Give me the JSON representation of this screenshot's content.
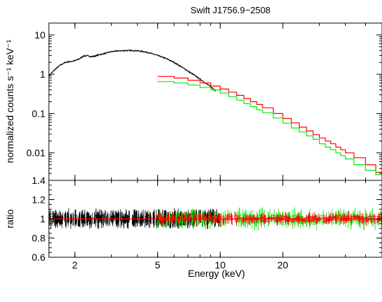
{
  "chart_data": {
    "type": "line",
    "title": "Swift J1756.9−2508",
    "xlabel": "Energy (keV)",
    "xscale": "log",
    "xlim": [
      1.5,
      60
    ],
    "x_ticks": [
      {
        "value": 2,
        "label": "2"
      },
      {
        "value": 5,
        "label": "5"
      },
      {
        "value": 10,
        "label": "10"
      },
      {
        "value": 20,
        "label": "20"
      }
    ],
    "panels": [
      {
        "ylabel": "normalized counts s⁻¹ keV⁻¹",
        "yscale": "log",
        "ylim": [
          0.002,
          20
        ],
        "y_ticks": [
          {
            "value": 10,
            "label": "10"
          },
          {
            "value": 1,
            "label": "1"
          },
          {
            "value": 0.1,
            "label": "0.1"
          },
          {
            "value": 0.01,
            "label": "0.01"
          }
        ],
        "series": [
          {
            "color": "#000000",
            "style": "line",
            "x": [
              1.5,
              1.6,
              1.7,
              1.8,
              1.9,
              2.0,
              2.1,
              2.2,
              2.3,
              2.4,
              2.5,
              2.6,
              2.8,
              3.0,
              3.2,
              3.5,
              3.8,
              4.0,
              4.3,
              4.6,
              5.0,
              5.5,
              6.0,
              6.5,
              7.0,
              7.5,
              8.0,
              8.5,
              9.0,
              9.5
            ],
            "y": [
              0.9,
              1.3,
              1.7,
              2.0,
              2.1,
              2.2,
              2.45,
              2.9,
              2.95,
              2.8,
              2.9,
              3.1,
              3.4,
              3.75,
              3.9,
              4.0,
              4.0,
              3.95,
              3.75,
              3.45,
              3.0,
              2.5,
              2.0,
              1.55,
              1.2,
              0.95,
              0.75,
              0.6,
              0.48,
              0.38
            ]
          },
          {
            "color": "#ff0000",
            "style": "step",
            "x": [
              5,
              6,
              7,
              8,
              9,
              10,
              11,
              12,
              13,
              14,
              15,
              16,
              18,
              20,
              22,
              24,
              26,
              28,
              30,
              32,
              34,
              36,
              38,
              40,
              44,
              50,
              56,
              60
            ],
            "y": [
              0.88,
              0.8,
              0.7,
              0.6,
              0.5,
              0.42,
              0.35,
              0.29,
              0.24,
              0.2,
              0.17,
              0.14,
              0.1,
              0.075,
              0.058,
              0.045,
              0.036,
              0.029,
              0.024,
              0.02,
              0.017,
              0.014,
              0.012,
              0.01,
              0.0075,
              0.005,
              0.0032,
              0.0032
            ]
          },
          {
            "color": "#00ee00",
            "style": "step",
            "x": [
              5,
              6,
              7,
              8,
              9,
              10,
              11,
              12,
              13,
              14,
              15,
              16,
              18,
              20,
              22,
              24,
              26,
              28,
              30,
              32,
              34,
              36,
              38,
              40,
              44,
              50,
              56,
              60
            ],
            "y": [
              0.65,
              0.6,
              0.53,
              0.46,
              0.4,
              0.33,
              0.27,
              0.22,
              0.18,
              0.15,
              0.125,
              0.105,
              0.077,
              0.057,
              0.043,
              0.034,
              0.027,
              0.022,
              0.017,
              0.014,
              0.012,
              0.01,
              0.0085,
              0.007,
              0.005,
              0.0036,
              0.0028,
              0.0028
            ]
          }
        ]
      },
      {
        "ylabel": "ratio",
        "yscale": "linear",
        "ylim": [
          0.6,
          1.4
        ],
        "y_ticks": [
          {
            "value": 1.4,
            "label": "1.4"
          },
          {
            "value": 1.2,
            "label": "1.2"
          },
          {
            "value": 1,
            "label": "1"
          },
          {
            "value": 0.8,
            "label": "0.8"
          },
          {
            "value": 0.6,
            "label": "0.6"
          }
        ],
        "reference_line": {
          "y": 1,
          "color": "#ff0000"
        },
        "series": [
          {
            "color": "#000000",
            "style": "errorbars",
            "x_range": [
              1.5,
              10
            ],
            "spread": 0.08
          },
          {
            "color": "#00ee00",
            "style": "errorbars",
            "x_range": [
              5,
              60
            ],
            "spread": 0.09
          },
          {
            "color": "#ff0000",
            "style": "errorbars",
            "x_range": [
              5,
              60
            ],
            "spread": 0.06
          }
        ]
      }
    ]
  }
}
